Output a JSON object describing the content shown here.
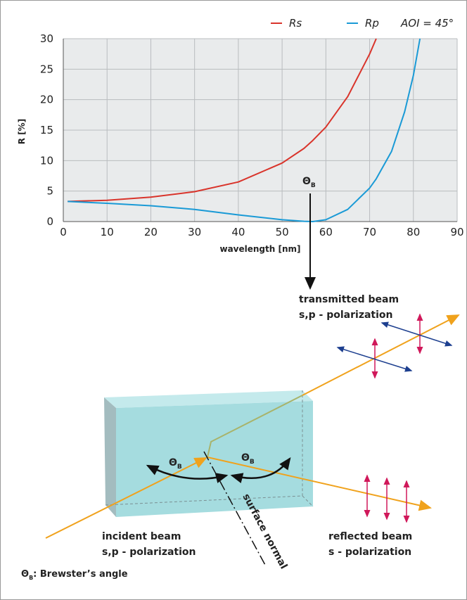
{
  "chart_data": {
    "type": "line",
    "ylabel": "R [%]",
    "xlabel": "wavelength [nm]",
    "x": [
      1,
      10,
      20,
      30,
      40,
      50,
      55,
      57,
      60,
      65,
      70,
      71.5,
      75,
      78,
      80,
      81.5
    ],
    "series": [
      {
        "name": "Rs",
        "color": "#d9342b",
        "values": [
          3.3,
          3.5,
          4.0,
          4.9,
          6.5,
          9.6,
          12,
          13.3,
          15.5,
          20.5,
          27.5,
          30,
          null,
          null,
          null,
          null
        ]
      },
      {
        "name": "Rp",
        "color": "#1a9ad6",
        "values": [
          3.3,
          3.0,
          2.6,
          2.0,
          1.1,
          0.3,
          0.05,
          0,
          0.3,
          2.0,
          5.5,
          7,
          11.5,
          18,
          24,
          30
        ]
      }
    ],
    "legend_note": "AOI = 45°",
    "brewster_label": {
      "symbol": "Θ",
      "subscript": "B"
    },
    "xlim": [
      0,
      90
    ],
    "xticks": [
      0,
      10,
      20,
      30,
      40,
      50,
      60,
      70,
      80,
      90
    ],
    "ylim": [
      0,
      30
    ],
    "yticks": [
      0,
      5,
      10,
      15,
      20,
      25,
      30
    ],
    "grid": true
  },
  "diagram": {
    "transmitted": [
      "transmitted beam",
      "s,p - polarization"
    ],
    "incident": [
      "incident beam",
      "s,p - polarization"
    ],
    "reflected": [
      "reflected beam",
      "s - polarization"
    ],
    "normal": "surface normal",
    "angle_left": {
      "symbol": "Θ",
      "subscript": "B"
    },
    "angle_right": {
      "symbol": "Θ",
      "subscript": "B"
    },
    "footnote": {
      "symbol": "Θ",
      "subscript": "B",
      "text": ": Brewster’s angle"
    }
  }
}
